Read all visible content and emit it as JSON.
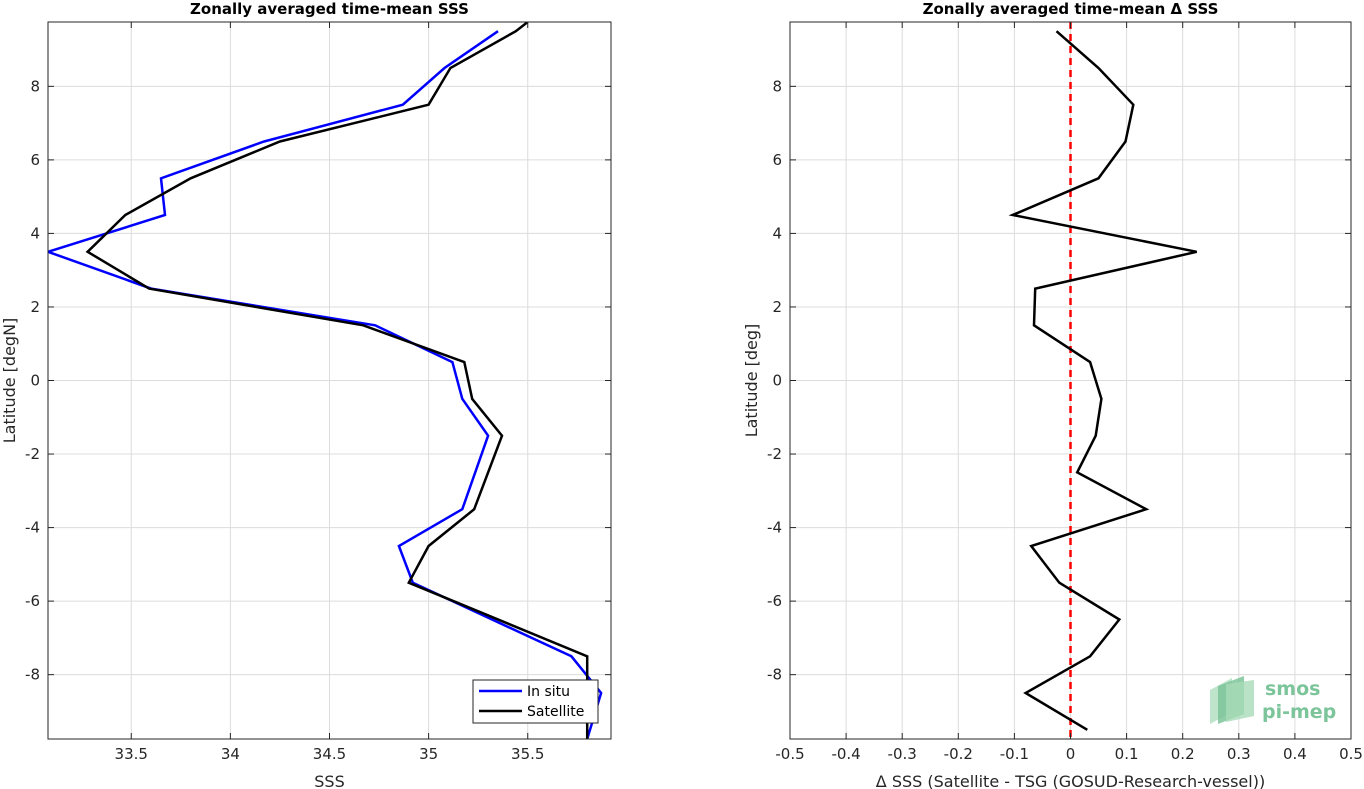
{
  "chart_data": [
    {
      "type": "line",
      "title": "Zonally averaged time-mean SSS",
      "xlabel": "SSS",
      "ylabel": "Latitude [degN]",
      "xlim": [
        33.08,
        35.92
      ],
      "ylim": [
        -9.75,
        9.75
      ],
      "xticks": [
        33.5,
        34,
        34.5,
        35,
        35.5
      ],
      "xtick_labels": [
        "33.5",
        "34",
        "34.5",
        "35",
        "35.5"
      ],
      "yticks": [
        -8,
        -6,
        -4,
        -2,
        0,
        2,
        4,
        6,
        8
      ],
      "ytick_labels": [
        "-8",
        "-6",
        "-4",
        "-2",
        "0",
        "2",
        "4",
        "6",
        "8"
      ],
      "grid": true,
      "legend_position": "bottom-right",
      "series": [
        {
          "name": "In situ",
          "color": "#0000ff",
          "x": [
            35.8,
            35.87,
            35.72,
            34.92,
            34.85,
            35.17,
            35.3,
            35.17,
            35.12,
            34.73,
            33.6,
            33.08,
            33.67,
            33.65,
            34.17,
            34.87,
            35.08,
            35.35
          ],
          "y": [
            -9.75,
            -8.5,
            -7.5,
            -5.5,
            -4.5,
            -3.5,
            -1.5,
            -0.5,
            0.5,
            1.5,
            2.5,
            3.5,
            4.5,
            5.5,
            6.5,
            7.5,
            8.5,
            9.5
          ]
        },
        {
          "name": "Satellite",
          "color": "#000000",
          "x": [
            35.8,
            35.8,
            35.8,
            34.9,
            35.0,
            35.23,
            35.37,
            35.22,
            35.18,
            34.67,
            33.59,
            33.28,
            33.47,
            33.8,
            34.25,
            35.0,
            35.11,
            35.44,
            35.5
          ],
          "y": [
            -9.75,
            -8.5,
            -7.5,
            -5.5,
            -4.5,
            -3.5,
            -1.5,
            -0.5,
            0.5,
            1.5,
            2.5,
            3.5,
            4.5,
            5.5,
            6.5,
            7.5,
            8.5,
            9.5,
            9.75
          ]
        }
      ]
    },
    {
      "type": "line",
      "title": "Zonally averaged time-mean Δ SSS",
      "xlabel": "Δ SSS (Satellite - TSG (GOSUD-Research-vessel))",
      "ylabel": "Latitude [deg]",
      "xlim": [
        -0.5,
        0.5
      ],
      "ylim": [
        -9.75,
        9.75
      ],
      "xticks": [
        -0.5,
        -0.4,
        -0.3,
        -0.2,
        -0.1,
        0,
        0.1,
        0.2,
        0.3,
        0.4,
        0.5
      ],
      "xtick_labels": [
        "-0.5",
        "-0.4",
        "-0.3",
        "-0.2",
        "-0.1",
        "0",
        "0.1",
        "0.2",
        "0.3",
        "0.4",
        "0.5"
      ],
      "yticks": [
        -8,
        -6,
        -4,
        -2,
        0,
        2,
        4,
        6,
        8
      ],
      "ytick_labels": [
        "-8",
        "-6",
        "-4",
        "-2",
        "0",
        "2",
        "4",
        "6",
        "8"
      ],
      "grid": true,
      "reference_line": {
        "x": 0,
        "color": "#ff0000",
        "style": "dashed"
      },
      "series": [
        {
          "color": "#000000",
          "x": [
            0.03,
            -0.08,
            0.035,
            0.087,
            -0.02,
            -0.07,
            0.135,
            0.012,
            0.045,
            0.055,
            0.035,
            -0.065,
            -0.063,
            0.225,
            -0.103,
            0.05,
            0.098,
            0.112,
            0.05,
            -0.025
          ],
          "y": [
            -9.5,
            -8.5,
            -7.5,
            -6.5,
            -5.5,
            -4.5,
            -3.5,
            -2.5,
            -1.5,
            -0.5,
            0.5,
            1.5,
            2.5,
            3.5,
            4.5,
            5.5,
            6.5,
            7.5,
            8.5,
            9.5
          ]
        }
      ]
    }
  ],
  "legend": {
    "items": [
      {
        "label": "In situ",
        "color": "#0000ff"
      },
      {
        "label": "Satellite",
        "color": "#000000"
      }
    ]
  },
  "logo": {
    "line1": "smos",
    "line2": "pi-mep",
    "colors": [
      "#2e8b57",
      "#7cc49a",
      "#b7e1c5"
    ]
  }
}
